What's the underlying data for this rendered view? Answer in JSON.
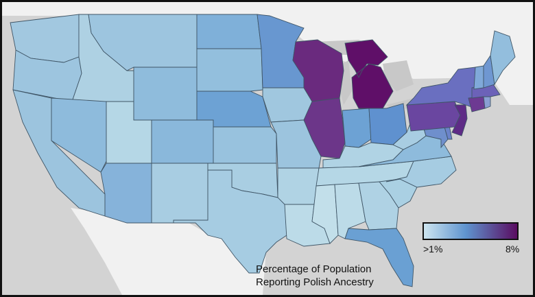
{
  "caption": {
    "line1": "Percentage of Population",
    "line2": "Reporting Polish Ancestry"
  },
  "legend": {
    "min_label": ">1%",
    "max_label": "8%",
    "color_low": "#cfe6f0",
    "color_mid": "#5f94cf",
    "color_high": "#5a0a5f"
  },
  "colors": {
    "land": "#f3f3f3",
    "water": "#d3d3d3",
    "border": "#3f5566",
    "frame": "#111111"
  },
  "states": [
    {
      "id": "WA",
      "color": "#a2c8e0"
    },
    {
      "id": "OR",
      "color": "#9dc5df"
    },
    {
      "id": "CA",
      "color": "#9cc4de"
    },
    {
      "id": "ID",
      "color": "#aed1e3"
    },
    {
      "id": "NV",
      "color": "#8ebbdc"
    },
    {
      "id": "UT",
      "color": "#b5d7e6"
    },
    {
      "id": "AZ",
      "color": "#86b3da"
    },
    {
      "id": "MT",
      "color": "#9dc5df"
    },
    {
      "id": "WY",
      "color": "#8fbcdc"
    },
    {
      "id": "CO",
      "color": "#8ab8db"
    },
    {
      "id": "NM",
      "color": "#a8cde2"
    },
    {
      "id": "ND",
      "color": "#7fb0d9"
    },
    {
      "id": "SD",
      "color": "#93bfdd"
    },
    {
      "id": "NE",
      "color": "#6da2d4"
    },
    {
      "id": "KS",
      "color": "#98c2de"
    },
    {
      "id": "OK",
      "color": "#a9cee2"
    },
    {
      "id": "TX",
      "color": "#a6cce2"
    },
    {
      "id": "MN",
      "color": "#6897d0"
    },
    {
      "id": "IA",
      "color": "#a0c7df"
    },
    {
      "id": "MO",
      "color": "#9cc4de"
    },
    {
      "id": "AR",
      "color": "#b0d3e4"
    },
    {
      "id": "LA",
      "color": "#bcdbe8"
    },
    {
      "id": "WI",
      "color": "#6a2a7e"
    },
    {
      "id": "IL",
      "color": "#6c3689"
    },
    {
      "id": "MI",
      "color": "#5f0f68"
    },
    {
      "id": "IN",
      "color": "#6da2d4"
    },
    {
      "id": "OH",
      "color": "#5f91cf"
    },
    {
      "id": "KY",
      "color": "#b0d3e4"
    },
    {
      "id": "TN",
      "color": "#b5d7e6"
    },
    {
      "id": "MS",
      "color": "#c2dfea"
    },
    {
      "id": "AL",
      "color": "#bcdbe8"
    },
    {
      "id": "GA",
      "color": "#afd2e4"
    },
    {
      "id": "FL",
      "color": "#6aa0d3"
    },
    {
      "id": "SC",
      "color": "#aad0e3"
    },
    {
      "id": "NC",
      "color": "#a6cce2"
    },
    {
      "id": "VA",
      "color": "#8ebbdc"
    },
    {
      "id": "WV",
      "color": "#a8cde2"
    },
    {
      "id": "MD",
      "color": "#6f8fcc"
    },
    {
      "id": "DE",
      "color": "#6b83c9"
    },
    {
      "id": "PA",
      "color": "#6a46a0"
    },
    {
      "id": "NJ",
      "color": "#5e2b86"
    },
    {
      "id": "NY",
      "color": "#6a6fc0"
    },
    {
      "id": "CT",
      "color": "#6d3a92"
    },
    {
      "id": "RI",
      "color": "#8a9fd3"
    },
    {
      "id": "MA",
      "color": "#6c62b8"
    },
    {
      "id": "VT",
      "color": "#80a9d9"
    },
    {
      "id": "NH",
      "color": "#6f97d1"
    },
    {
      "id": "ME",
      "color": "#93bedd"
    }
  ]
}
